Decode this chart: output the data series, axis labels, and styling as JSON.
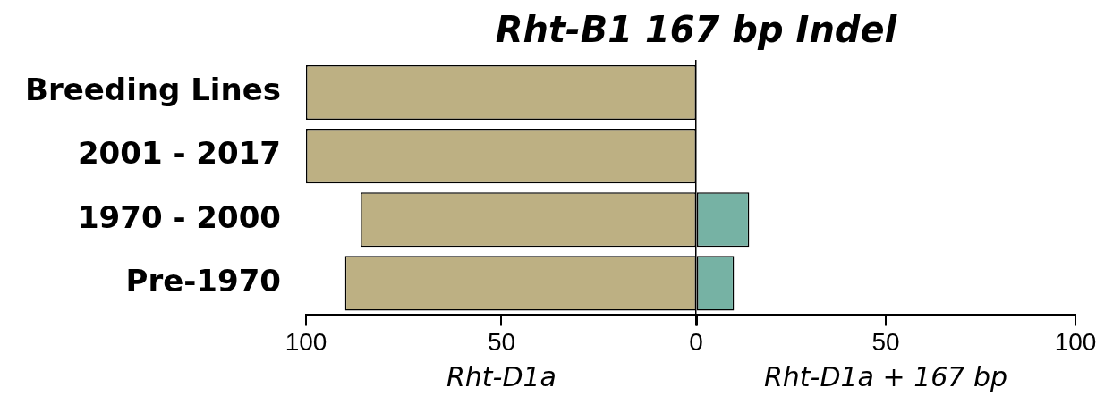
{
  "chart_data": [
    {
      "type": "bar",
      "orientation": "horizontal",
      "categories": [
        "Breeding Lines",
        "2001 - 2017",
        "1970 - 2000",
        "Pre-1970"
      ],
      "values": [
        100,
        100,
        86,
        90
      ],
      "color": "#bdb083",
      "xlim": [
        100,
        0
      ],
      "xticks": [
        100,
        50,
        {
          "value": 0,
          "label": null
        }
      ],
      "xlabel": "Rht-D1a"
    },
    {
      "type": "bar",
      "orientation": "horizontal",
      "title": "Rht-B1 167 bp Indel",
      "categories": [
        null,
        null,
        null,
        null
      ],
      "values": [
        0,
        0,
        14,
        10
      ],
      "color": "#76b2a4",
      "xlim": [
        0,
        100
      ],
      "xticks": [
        0,
        50,
        100
      ],
      "xlabel": "Rht-D1a + 167 bp",
      "tick_labels": "x"
    }
  ]
}
